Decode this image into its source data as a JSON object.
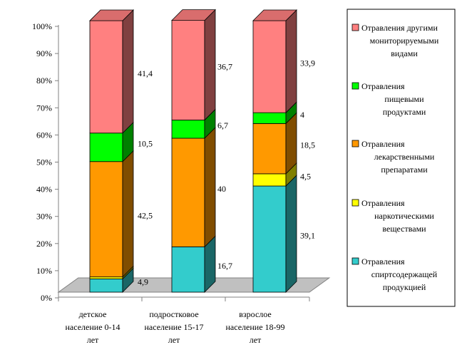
{
  "chart_data": {
    "type": "bar",
    "stacked": true,
    "percent_stacked": true,
    "three_d": true,
    "grid": false,
    "legend_position": "right",
    "ylim": [
      0,
      100
    ],
    "y_ticks": [
      "0%",
      "10%",
      "20%",
      "30%",
      "40%",
      "50%",
      "60%",
      "70%",
      "80%",
      "90%",
      "100%"
    ],
    "categories": [
      [
        "детское",
        "население 0-14",
        "лет"
      ],
      [
        "подростковое",
        "население 15-17",
        "лет"
      ],
      [
        "взрослое",
        "население 18-99",
        "лет"
      ]
    ],
    "series": [
      {
        "name": "Отравления спиртсодержащей продукцией",
        "legend_lines": [
          "Отравления",
          "спиртсодержащей",
          "продукцией"
        ],
        "color": "#33cccc",
        "values": [
          4.9,
          16.7,
          39.1
        ],
        "labels": [
          "4,9",
          "16,7",
          "39,1"
        ]
      },
      {
        "name": "Отравления наркотическими веществами",
        "legend_lines": [
          "Отравления",
          "наркотическими",
          "веществами"
        ],
        "color": "#ffff00",
        "values": [
          0.7,
          0,
          4.5
        ],
        "labels": [
          "",
          "",
          "4,5"
        ]
      },
      {
        "name": "Отравления лекарственными препаратами",
        "legend_lines": [
          "Отравления",
          "лекарственными",
          "препаратами"
        ],
        "color": "#ff9900",
        "values": [
          42.5,
          40,
          18.5
        ],
        "labels": [
          "42,5",
          "40",
          "18,5"
        ]
      },
      {
        "name": "Отравления пищевыми продуктами",
        "legend_lines": [
          "Отравления",
          "пищевыми",
          "продуктами"
        ],
        "color": "#00ff00",
        "values": [
          10.5,
          6.7,
          4
        ],
        "labels": [
          "10,5",
          "6,7",
          "4"
        ]
      },
      {
        "name": "Отравления другими мониторируемыми видами",
        "legend_lines": [
          "Отравления другими",
          "мониторируемыми",
          "видами"
        ],
        "color": "#ff8080",
        "values": [
          41.4,
          36.7,
          33.9
        ],
        "labels": [
          "41,4",
          "36,7",
          "33,9"
        ]
      }
    ],
    "legend_order": [
      4,
      3,
      2,
      1,
      0
    ],
    "colors": {
      "floor": "#c0c0c0",
      "frame": "#000000",
      "background": "#ffffff"
    }
  }
}
